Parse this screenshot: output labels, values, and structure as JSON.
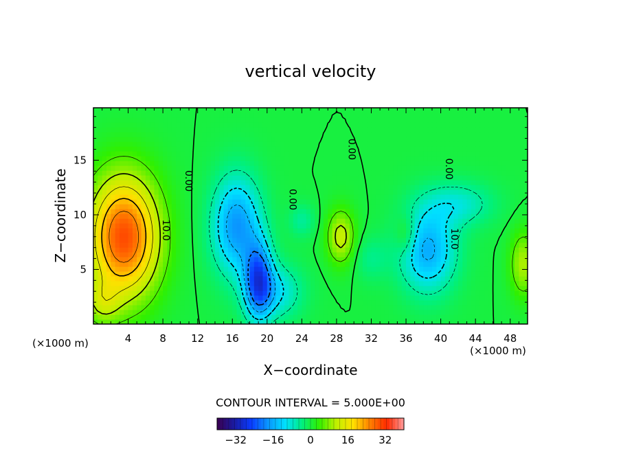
{
  "chart_data": {
    "type": "heatmap",
    "title": "vertical velocity",
    "xlabel": "X−coordinate",
    "ylabel": "Z−coordinate",
    "x_unit_left": "(×1000 m)",
    "x_unit_right": "(×1000 m)",
    "xlim": [
      0,
      50
    ],
    "ylim": [
      0,
      19.8
    ],
    "x_ticks": [
      4,
      8,
      12,
      16,
      20,
      24,
      28,
      32,
      36,
      40,
      44,
      48
    ],
    "y_ticks": [
      5,
      10,
      15
    ],
    "contour_interval_text": "CONTOUR INTERVAL = 5.000E+00",
    "colorbar": {
      "range": [
        -40,
        40
      ],
      "ticks": [
        -32,
        -16,
        0,
        16,
        32
      ],
      "colors": [
        "#3a0050",
        "#1a1aa0",
        "#0a3cff",
        "#0a96ff",
        "#00e0ff",
        "#00f080",
        "#30f000",
        "#c0f000",
        "#ffe000",
        "#ff8000",
        "#ff2a00",
        "#ff9a9a"
      ]
    },
    "contour_labels": [
      {
        "text": "10.0",
        "x": 8.0,
        "y": 8.6,
        "rotate": 90
      },
      {
        "text": "0.00",
        "x": 10.6,
        "y": 13.1,
        "rotate": 90
      },
      {
        "text": "0.00",
        "x": 22.6,
        "y": 11.4,
        "rotate": 90
      },
      {
        "text": "0.00",
        "x": 29.4,
        "y": 16.0,
        "rotate": 90
      },
      {
        "text": "0.00",
        "x": 40.6,
        "y": 14.2,
        "rotate": 90
      },
      {
        "text": "10.0",
        "x": 41.2,
        "y": 7.8,
        "rotate": 90
      }
    ],
    "features": [
      {
        "x": 3.5,
        "y": 8.0,
        "value": 30,
        "rx": 4.0,
        "ry": 5.5
      },
      {
        "x": 1.0,
        "y": 2.0,
        "value": 8,
        "rx": 2.0,
        "ry": 2.0
      },
      {
        "x": 16.5,
        "y": 9.0,
        "value": -18,
        "rx": 2.8,
        "ry": 4.5
      },
      {
        "x": 19.0,
        "y": 4.0,
        "value": -22,
        "rx": 1.6,
        "ry": 3.5
      },
      {
        "x": 21.0,
        "y": 3.0,
        "value": -10,
        "rx": 3.0,
        "ry": 2.5
      },
      {
        "x": 28.5,
        "y": 8.0,
        "value": 12,
        "rx": 1.6,
        "ry": 2.5
      },
      {
        "x": 24.0,
        "y": 9.5,
        "value": -5,
        "rx": 1.5,
        "ry": 1.5
      },
      {
        "x": 38.5,
        "y": 6.8,
        "value": -16,
        "rx": 3.2,
        "ry": 3.8
      },
      {
        "x": 42.0,
        "y": 11.0,
        "value": -8,
        "rx": 4.0,
        "ry": 2.0
      },
      {
        "x": 36.0,
        "y": 8.2,
        "value": 6,
        "rx": 1.2,
        "ry": 1.8
      },
      {
        "x": 49.5,
        "y": 5.5,
        "value": 10,
        "rx": 1.5,
        "ry": 3.0
      },
      {
        "x": 32.0,
        "y": 6.0,
        "value": -4,
        "rx": 2.0,
        "ry": 2.0
      }
    ]
  }
}
